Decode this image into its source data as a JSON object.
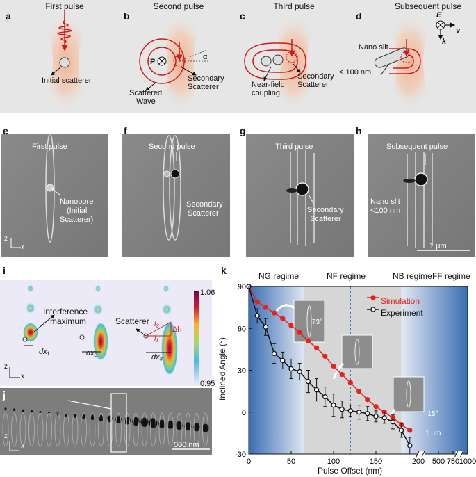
{
  "top_panels": {
    "a": {
      "label": "a",
      "title": "First pulse",
      "annot": [
        "Initial scatterer"
      ]
    },
    "b": {
      "label": "b",
      "title": "Second pulse",
      "annot": [
        "P",
        "α",
        "Scattered",
        "Wave",
        "Secondary",
        "Scatterer"
      ]
    },
    "c": {
      "label": "c",
      "title": "Third pulse",
      "annot": [
        "Near-field",
        "coupling",
        "Secondary",
        "Scatterer"
      ]
    },
    "d": {
      "label": "d",
      "title": "Subsequent pulse",
      "annot": [
        "Nano slit",
        "< 100 nm",
        "E",
        "v",
        "k"
      ]
    }
  },
  "sem_panels": {
    "e": {
      "label": "e",
      "title": "First pulse",
      "annot": [
        "Nanopore",
        "(Initial",
        "Scatterer)"
      ]
    },
    "f": {
      "label": "f",
      "title": "Second pulse",
      "annot": [
        "Secondary",
        "Scatterer"
      ]
    },
    "g": {
      "label": "g",
      "title": "Third pulse",
      "annot": [
        "Secondary",
        "Scatterer"
      ]
    },
    "h": {
      "label": "h",
      "title": "Subsequent pulse",
      "annot": [
        "Nano slit",
        "<100 nm"
      ],
      "scalebar": "1 μm"
    },
    "axes": {
      "z": "z",
      "x": "x"
    }
  },
  "panel_i": {
    "label": "i",
    "interference": [
      "Interference",
      "maximum"
    ],
    "scatterer": "Scatterer",
    "dx": [
      "dx₁",
      "dx₂",
      "dx₃"
    ],
    "geom": {
      "l2": "l₂",
      "l1": "l₁",
      "dh": "Δh"
    },
    "colorbar": {
      "max": "1.06",
      "min": "0.95"
    },
    "axes": {
      "z": "z",
      "x": "x"
    }
  },
  "panel_j": {
    "label": "j",
    "scalebar": "500 nm",
    "axes": {
      "z": "z",
      "x": "x"
    }
  },
  "panel_k": {
    "label": "k",
    "regimes": [
      "NG regime",
      "NF regime",
      "NB regime",
      "FF regime"
    ],
    "inset_angles": [
      "73°",
      "-15°"
    ],
    "inset_scale": "1 μm"
  },
  "colors": {
    "simulation": "#e8221b",
    "experiment": "#111111",
    "regime_blue": "#3a6db3",
    "regime_gray": "#d6d6d6"
  },
  "chart_data": {
    "type": "line",
    "xlabel": "Pulse Offset (nm)",
    "ylabel": "Inclined Angle (°)",
    "xlim": [
      0,
      1000
    ],
    "ylim": [
      -30,
      90
    ],
    "x_break": [
      200,
      250
    ],
    "x_ticks": [
      0,
      50,
      100,
      150,
      200,
      500,
      750,
      1000
    ],
    "y_ticks": [
      -30,
      0,
      30,
      60,
      90
    ],
    "legend_position": "top-right",
    "series": [
      {
        "name": "Simulation",
        "x": [
          0,
          10,
          20,
          30,
          40,
          50,
          60,
          70,
          80,
          90,
          100,
          110,
          120,
          130,
          140,
          150,
          160,
          170,
          180,
          190
        ],
        "values": [
          90,
          79,
          75,
          71,
          67,
          62,
          57,
          51,
          46,
          40,
          33,
          27,
          21,
          15,
          9,
          4,
          0,
          -4,
          -9,
          -13
        ]
      },
      {
        "name": "Experiment",
        "x": [
          0,
          10,
          20,
          30,
          40,
          50,
          60,
          70,
          80,
          90,
          100,
          110,
          120,
          130,
          140,
          150,
          160,
          170,
          180,
          190
        ],
        "values": [
          90,
          69,
          61,
          42,
          37,
          31,
          29,
          22,
          16,
          11,
          5,
          2,
          1,
          0,
          -1,
          -3,
          -4,
          -7,
          -13,
          -24
        ],
        "error": [
          0,
          5,
          6,
          7,
          6,
          7,
          6,
          8,
          8,
          7,
          8,
          6,
          4,
          5,
          5,
          4,
          4,
          5,
          5,
          6
        ]
      }
    ]
  }
}
